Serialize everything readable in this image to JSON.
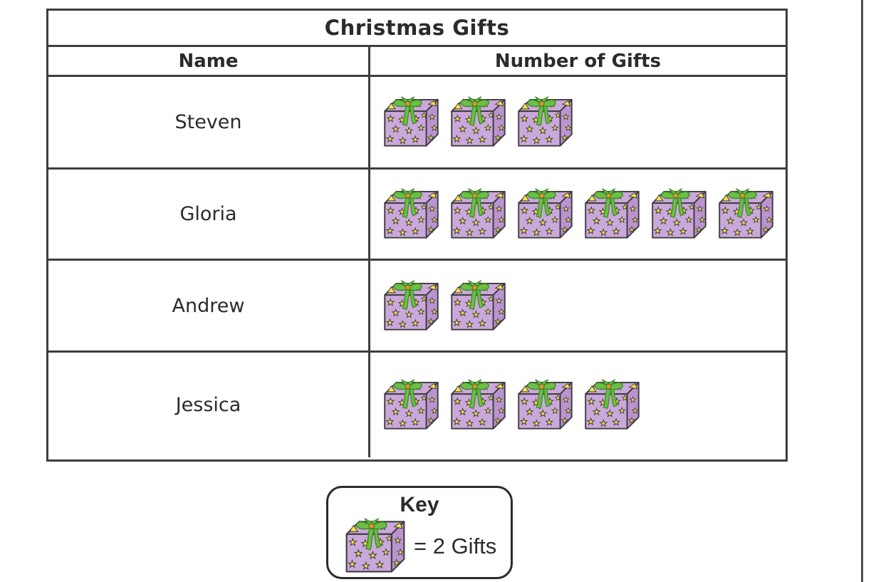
{
  "page": {
    "background": "#ffffff",
    "right_edge_line_color": "#4f4f4f"
  },
  "chart_data": {
    "type": "pictograph",
    "title": "Christmas Gifts",
    "columns": [
      "Name",
      "Number of Gifts"
    ],
    "categories": [
      "Steven",
      "Gloria",
      "Andrew",
      "Jessica"
    ],
    "icon_counts": [
      3,
      6,
      2,
      4
    ],
    "values": [
      6,
      12,
      4,
      8
    ],
    "rows": [
      {
        "name": "Steven",
        "icons": 3,
        "gifts": 6
      },
      {
        "name": "Gloria",
        "icons": 6,
        "gifts": 12
      },
      {
        "name": "Andrew",
        "icons": 2,
        "gifts": 4
      },
      {
        "name": "Jessica",
        "icons": 4,
        "gifts": 8
      }
    ],
    "key": {
      "label": "Key",
      "icon": "gift-icon",
      "unit_text": "= 2 Gifts",
      "icon_value": 2
    },
    "legend_position": "bottom-center",
    "grid": false
  },
  "icon_colors": {
    "box_purple": "#cba8da",
    "box_purple_dark": "#bb93cf",
    "star_yellow": "#f7e93d",
    "bow_green": "#6cbe45",
    "bow_green_dark": "#3f8a28",
    "bow_center_orange": "#f28c28",
    "outline": "#3e3e3e"
  }
}
